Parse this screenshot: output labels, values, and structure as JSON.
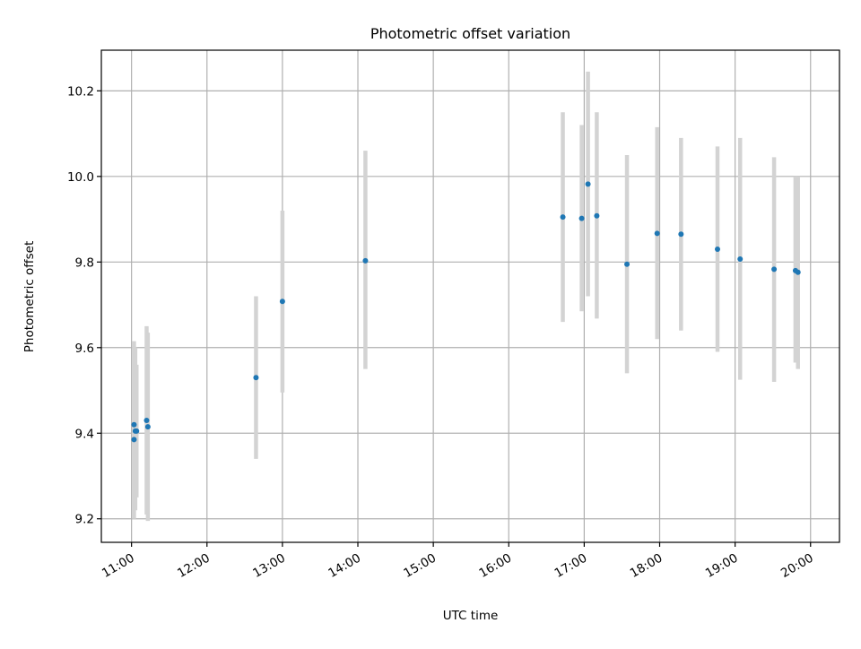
{
  "chart_data": {
    "type": "scatter",
    "title": "Photometric offset variation",
    "xlabel": "UTC time",
    "ylabel": "Photometric offset",
    "x_ticks": [
      "11:00",
      "12:00",
      "13:00",
      "14:00",
      "15:00",
      "16:00",
      "17:00",
      "18:00",
      "19:00",
      "20:00"
    ],
    "y_ticks": [
      "9.2",
      "9.4",
      "9.6",
      "9.8",
      "10.0",
      "10.2"
    ],
    "xlim": [
      "10:36",
      "20:23"
    ],
    "ylim": [
      9.145,
      10.295
    ],
    "grid": true,
    "marker_color": "#1f77b4",
    "errorbar_color": "#d3d3d3",
    "series": [
      {
        "points": [
          {
            "x": "11:02",
            "y": 9.42,
            "ymin": 9.23,
            "ymax": 9.615
          },
          {
            "x": "11:02",
            "y": 9.385,
            "ymin": 9.2,
            "ymax": 9.58
          },
          {
            "x": "11:03",
            "y": 9.405,
            "ymin": 9.22,
            "ymax": 9.6
          },
          {
            "x": "11:04",
            "y": 9.405,
            "ymin": 9.25,
            "ymax": 9.56
          },
          {
            "x": "11:12",
            "y": 9.43,
            "ymin": 9.21,
            "ymax": 9.65
          },
          {
            "x": "11:13",
            "y": 9.415,
            "ymin": 9.195,
            "ymax": 9.635
          },
          {
            "x": "12:39",
            "y": 9.53,
            "ymin": 9.34,
            "ymax": 9.72
          },
          {
            "x": "13:00",
            "y": 9.708,
            "ymin": 9.495,
            "ymax": 9.92
          },
          {
            "x": "14:06",
            "y": 9.803,
            "ymin": 9.55,
            "ymax": 10.06
          },
          {
            "x": "16:43",
            "y": 9.905,
            "ymin": 9.66,
            "ymax": 10.15
          },
          {
            "x": "16:58",
            "y": 9.902,
            "ymin": 9.685,
            "ymax": 10.12
          },
          {
            "x": "17:03",
            "y": 9.982,
            "ymin": 9.72,
            "ymax": 10.245
          },
          {
            "x": "17:10",
            "y": 9.908,
            "ymin": 9.668,
            "ymax": 10.15
          },
          {
            "x": "17:34",
            "y": 9.795,
            "ymin": 9.54,
            "ymax": 10.05
          },
          {
            "x": "17:58",
            "y": 9.867,
            "ymin": 9.62,
            "ymax": 10.115
          },
          {
            "x": "18:17",
            "y": 9.865,
            "ymin": 9.64,
            "ymax": 10.09
          },
          {
            "x": "18:46",
            "y": 9.83,
            "ymin": 9.59,
            "ymax": 10.07
          },
          {
            "x": "19:04",
            "y": 9.807,
            "ymin": 9.525,
            "ymax": 10.09
          },
          {
            "x": "19:31",
            "y": 9.783,
            "ymin": 9.52,
            "ymax": 10.045
          },
          {
            "x": "19:48",
            "y": 9.78,
            "ymin": 9.565,
            "ymax": 10.0
          },
          {
            "x": "19:50",
            "y": 9.776,
            "ymin": 9.55,
            "ymax": 10.0
          }
        ]
      }
    ]
  }
}
